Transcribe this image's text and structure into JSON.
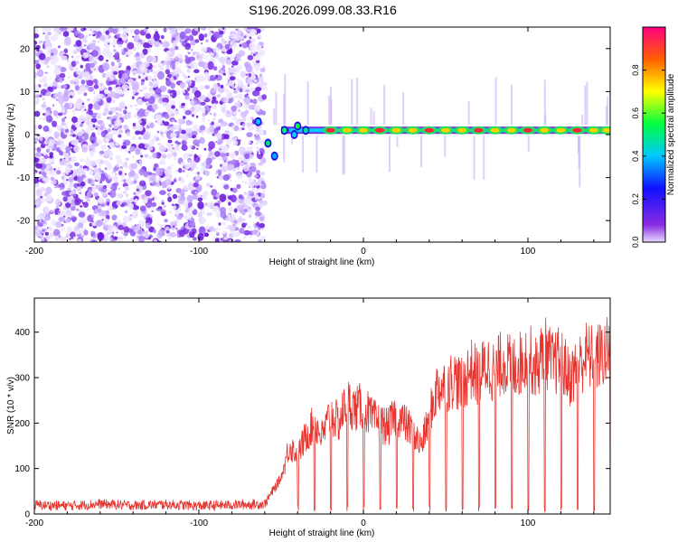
{
  "title": "S196.2026.099.08.33.R16",
  "colors": {
    "axis": "#000000",
    "snr_line": "#e8342e",
    "noise_purple": "#7a2be0",
    "background": "#ffffff"
  },
  "chart_data": [
    {
      "type": "heatmap",
      "name": "spectrogram",
      "xlabel": "Height of straight line (km)",
      "ylabel": "Frequency (Hz)",
      "xlim": [
        -200,
        150
      ],
      "ylim": [
        -25,
        25
      ],
      "xticks": [
        -200,
        -100,
        0,
        100
      ],
      "xtick_labels": [
        "-200",
        "-100",
        "0",
        "100"
      ],
      "yticks": [
        -20,
        -10,
        0,
        10,
        20
      ],
      "ytick_labels": [
        "-20",
        "-10",
        "0",
        "10",
        "20"
      ],
      "noise_region_x": [
        -200,
        -60
      ],
      "track": {
        "x_start": -60,
        "x_end": 150,
        "approx_frequency_hz": 1.0,
        "peak_x": [
          -20,
          -10,
          0,
          10,
          20,
          30,
          40,
          50,
          60,
          70,
          80,
          90,
          100,
          110,
          120,
          130,
          140,
          148
        ]
      },
      "colorbar": {
        "label": "Normalized spectral amplitude",
        "range": [
          0.0,
          1.0
        ],
        "ticks": [
          0.0,
          0.2,
          0.4,
          0.6,
          0.8
        ],
        "tick_labels": [
          "0.0",
          "0.2",
          "0.4",
          "0.6",
          "0.8"
        ]
      }
    },
    {
      "type": "line",
      "name": "snr",
      "xlabel": "Height of straight line (km)",
      "ylabel": "SNR (10 * v/v)",
      "xlim": [
        -200,
        150
      ],
      "ylim": [
        0,
        475
      ],
      "xticks": [
        -200,
        -100,
        0,
        100
      ],
      "xtick_labels": [
        "-200",
        "-100",
        "0",
        "100"
      ],
      "yticks": [
        0,
        100,
        200,
        300,
        400
      ],
      "ytick_labels": [
        "0",
        "100",
        "200",
        "300",
        "400"
      ],
      "series": [
        {
          "name": "SNR",
          "x": [
            -200,
            -180,
            -160,
            -140,
            -120,
            -100,
            -80,
            -60,
            -50,
            -45,
            -40,
            -35,
            -30,
            -25,
            -20,
            -15,
            -10,
            -5,
            0,
            5,
            10,
            15,
            20,
            25,
            30,
            35,
            40,
            45,
            50,
            55,
            60,
            65,
            70,
            75,
            80,
            85,
            90,
            95,
            100,
            105,
            110,
            115,
            120,
            125,
            130,
            135,
            140,
            145,
            150
          ],
          "values": [
            20,
            18,
            22,
            19,
            21,
            18,
            20,
            22,
            80,
            150,
            130,
            170,
            200,
            170,
            220,
            200,
            250,
            230,
            240,
            210,
            200,
            190,
            220,
            200,
            180,
            150,
            210,
            280,
            280,
            300,
            280,
            320,
            300,
            330,
            310,
            340,
            320,
            330,
            350,
            320,
            360,
            330,
            340,
            300,
            320,
            350,
            340,
            350,
            360
          ]
        }
      ]
    }
  ]
}
